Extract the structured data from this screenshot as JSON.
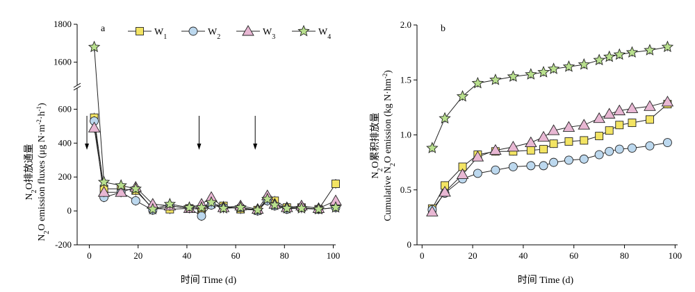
{
  "colors": {
    "W1": "#f3e463",
    "W2": "#bcd8ee",
    "W3": "#e8b7d3",
    "W4": "#b9e08e",
    "axis": "#000000"
  },
  "legend": {
    "items": [
      {
        "base": "W",
        "sub": "1",
        "series": "W1",
        "marker": "square"
      },
      {
        "base": "W",
        "sub": "2",
        "series": "W2",
        "marker": "circle"
      },
      {
        "base": "W",
        "sub": "3",
        "series": "W3",
        "marker": "triangle"
      },
      {
        "base": "W",
        "sub": "4",
        "series": "W4",
        "marker": "star"
      }
    ]
  },
  "chart_data": [
    {
      "panel": "a",
      "type": "line",
      "xlabel": "时间 Time (d)",
      "ylabel_zh_pre": "N",
      "ylabel_zh_sub": "2",
      "ylabel_zh_post": "O排放通量",
      "ylabel_en_pre": "N",
      "ylabel_en_sub": "2",
      "ylabel_en_post": "O emission fluxes (μg N·m",
      "ylabel_en_sup1": "-2",
      "ylabel_en_mid": "·h",
      "ylabel_en_sup2": "-1",
      "ylabel_en_end": ")",
      "xlim": [
        -5,
        101
      ],
      "xticks": [
        0,
        20,
        40,
        60,
        80,
        100
      ],
      "ylim_lower": [
        -200,
        700
      ],
      "yticks_lower": [
        -200,
        0,
        200,
        400,
        600
      ],
      "ylim_upper": [
        1500,
        1800
      ],
      "yticks_upper": [
        1600,
        1800
      ],
      "axis_break": true,
      "arrows_x": [
        -1,
        45,
        68
      ],
      "series": [
        {
          "name": "W1",
          "marker": "square",
          "x": [
            2,
            6,
            13,
            19,
            26,
            33,
            41,
            46,
            50,
            55,
            62,
            69,
            73,
            76,
            81,
            87,
            94,
            101
          ],
          "y": [
            550,
            130,
            130,
            120,
            15,
            10,
            15,
            10,
            40,
            30,
            10,
            5,
            65,
            60,
            20,
            20,
            10,
            160
          ]
        },
        {
          "name": "W2",
          "marker": "circle",
          "x": [
            2,
            6,
            13,
            19,
            26,
            33,
            41,
            46,
            50,
            55,
            62,
            69,
            73,
            76,
            81,
            87,
            94,
            101
          ],
          "y": [
            530,
            80,
            110,
            60,
            5,
            30,
            15,
            -30,
            35,
            20,
            20,
            0,
            60,
            30,
            10,
            20,
            10,
            20
          ]
        },
        {
          "name": "W3",
          "marker": "triangle",
          "x": [
            2,
            6,
            13,
            19,
            26,
            33,
            41,
            46,
            50,
            55,
            62,
            69,
            73,
            76,
            81,
            87,
            94,
            101
          ],
          "y": [
            490,
            110,
            110,
            140,
            40,
            30,
            15,
            40,
            80,
            20,
            30,
            10,
            90,
            40,
            20,
            30,
            15,
            60
          ]
        },
        {
          "name": "W4",
          "marker": "star",
          "x": [
            2,
            6,
            13,
            19,
            26,
            33,
            41,
            46,
            50,
            55,
            62,
            69,
            73,
            76,
            81,
            87,
            94,
            101
          ],
          "y": [
            1680,
            170,
            150,
            130,
            10,
            40,
            20,
            20,
            50,
            15,
            20,
            5,
            70,
            35,
            15,
            15,
            10,
            20
          ]
        }
      ]
    },
    {
      "panel": "b",
      "type": "line",
      "xlabel": "时间 Time (d)",
      "ylabel_zh_pre": "N",
      "ylabel_zh_sub": "2",
      "ylabel_zh_post": "O累积排放量",
      "ylabel_en_pre": "Cumulative N",
      "ylabel_en_sub": "2",
      "ylabel_en_post": "O emission (kg N·hm",
      "ylabel_en_sup1": "-2",
      "ylabel_en_end": ")",
      "xlim": [
        -2,
        101
      ],
      "xticks": [
        0,
        20,
        40,
        60,
        80,
        100
      ],
      "ylim": [
        0,
        2.0
      ],
      "yticks": [
        0,
        0.5,
        1.0,
        1.5,
        2.0
      ],
      "ytick_labels": [
        "0",
        "0.5",
        "1.0",
        "1.5",
        "2.0"
      ],
      "series": [
        {
          "name": "W1",
          "marker": "square",
          "x": [
            4,
            9,
            16,
            22,
            29,
            36,
            43,
            48,
            52,
            58,
            64,
            70,
            74,
            78,
            83,
            90,
            97
          ],
          "y": [
            0.33,
            0.54,
            0.71,
            0.82,
            0.85,
            0.85,
            0.86,
            0.87,
            0.92,
            0.94,
            0.95,
            0.99,
            1.04,
            1.09,
            1.11,
            1.14,
            1.28
          ]
        },
        {
          "name": "W2",
          "marker": "circle",
          "x": [
            4,
            9,
            16,
            22,
            29,
            36,
            43,
            48,
            52,
            58,
            64,
            70,
            74,
            78,
            83,
            90,
            97
          ],
          "y": [
            0.32,
            0.47,
            0.6,
            0.65,
            0.68,
            0.71,
            0.72,
            0.72,
            0.75,
            0.77,
            0.78,
            0.82,
            0.85,
            0.87,
            0.88,
            0.9,
            0.93
          ]
        },
        {
          "name": "W3",
          "marker": "triangle",
          "x": [
            4,
            9,
            16,
            22,
            29,
            36,
            43,
            48,
            52,
            58,
            64,
            70,
            74,
            78,
            83,
            90,
            97
          ],
          "y": [
            0.3,
            0.48,
            0.64,
            0.8,
            0.86,
            0.89,
            0.93,
            0.98,
            1.04,
            1.07,
            1.09,
            1.15,
            1.19,
            1.22,
            1.24,
            1.26,
            1.3
          ]
        },
        {
          "name": "W4",
          "marker": "star",
          "x": [
            4,
            9,
            16,
            22,
            29,
            36,
            43,
            48,
            52,
            58,
            64,
            70,
            74,
            78,
            83,
            90,
            97
          ],
          "y": [
            0.88,
            1.15,
            1.35,
            1.47,
            1.5,
            1.53,
            1.55,
            1.57,
            1.6,
            1.62,
            1.64,
            1.68,
            1.71,
            1.73,
            1.75,
            1.77,
            1.8
          ]
        }
      ]
    }
  ]
}
